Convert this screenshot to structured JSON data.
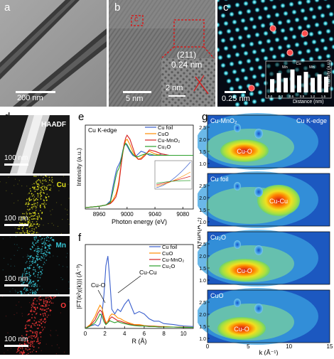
{
  "panels": {
    "a": {
      "label": "a",
      "scale": "200 nm"
    },
    "b": {
      "label": "b",
      "scale": "5 nm",
      "box_label": "c",
      "inset_index": "(211)",
      "inset_spacing": "0.24 nm",
      "inset_scale": "2 nm"
    },
    "c": {
      "label": "c",
      "scale": "0.25 nm",
      "inset_ylabel": "Intensity (a.u.)",
      "inset_xlabel": "Distance (nm)",
      "inset_ticks": [
        "0.0",
        "0.3",
        "0.6",
        "0.9",
        "1.2",
        "1.5"
      ],
      "peak_labels": [
        "Mn",
        "Cu",
        "Mn"
      ]
    },
    "d": {
      "label": "d",
      "maps": [
        {
          "name": "HAADF",
          "scale": "100 nm",
          "color": "#ffffff"
        },
        {
          "name": "Cu",
          "scale": "100 nm",
          "color": "#e6e61e"
        },
        {
          "name": "Mn",
          "scale": "100 nm",
          "color": "#38c8d8"
        },
        {
          "name": "O",
          "scale": "100 nm",
          "color": "#ff3a3a"
        }
      ]
    },
    "e": {
      "label": "e",
      "edge": "Cu K-edge",
      "ylabel": "Intensity (a.u.)",
      "xlabel": "Photon energy (eV)",
      "xticks": [
        "8960",
        "9000",
        "9040",
        "9080"
      ]
    },
    "f": {
      "label": "f",
      "ylabel": "|FT(k²χ(k))| (Å⁻³)",
      "xlabel": "R (Å)",
      "xticks": [
        "0",
        "2",
        "4",
        "6",
        "8",
        "10"
      ],
      "annot_cuo": "Cu-O",
      "annot_cucu": "Cu-Cu"
    },
    "g": {
      "label": "g",
      "edge": "Cu K-edge",
      "ylabel": "R+ΔR(Å⁻¹)",
      "xlabel": "k (Å⁻¹)",
      "xticks": [
        "0",
        "5",
        "10",
        "15"
      ],
      "yticks": [
        "1.0",
        "1.5",
        "2.0",
        "2.5"
      ],
      "maps": [
        {
          "name": "Cu-MnO₂",
          "feature": "Cu-O"
        },
        {
          "name": "Cu foil",
          "feature": "Cu-Cu"
        },
        {
          "name": "Cu₂O",
          "feature": "Cu-O"
        },
        {
          "name": "CuO",
          "feature": "Cu-O"
        }
      ]
    }
  },
  "legend": [
    {
      "name": "Cu foil",
      "color": "#3a5fcd"
    },
    {
      "name": "CuO",
      "color": "#ff8c00"
    },
    {
      "name": "Cu-MnO₂",
      "color": "#d62020"
    },
    {
      "name": "Cu₂O",
      "color": "#2ca02c"
    }
  ],
  "chart_data": [
    {
      "type": "line",
      "title": "Cu K-edge",
      "xlabel": "Photon energy (eV)",
      "ylabel": "Intensity (a.u.)",
      "xlim": [
        8940,
        9095
      ],
      "x": [
        8940,
        8960,
        8970,
        8976,
        8980,
        8984,
        8986,
        8988,
        8990,
        8992,
        8994,
        8996,
        8998,
        9000,
        9004,
        9008,
        9012,
        9016,
        9020,
        9026,
        9032,
        9040,
        9050,
        9060,
        9070,
        9080,
        9095
      ],
      "series": [
        {
          "name": "Cu foil",
          "values": [
            0.02,
            0.04,
            0.06,
            0.12,
            0.35,
            0.55,
            0.62,
            0.66,
            0.7,
            0.78,
            0.88,
            0.95,
            0.97,
            0.94,
            0.86,
            0.8,
            0.78,
            0.82,
            0.86,
            0.84,
            0.8,
            0.8,
            0.82,
            0.8,
            0.8,
            0.8,
            0.8
          ]
        },
        {
          "name": "CuO",
          "values": [
            0.02,
            0.04,
            0.06,
            0.09,
            0.14,
            0.22,
            0.3,
            0.4,
            0.55,
            0.7,
            0.84,
            0.95,
            1.02,
            1.04,
            0.96,
            0.86,
            0.78,
            0.74,
            0.76,
            0.82,
            0.86,
            0.82,
            0.8,
            0.8,
            0.8,
            0.8,
            0.8
          ]
        },
        {
          "name": "Cu-MnO₂",
          "values": [
            0.02,
            0.04,
            0.06,
            0.08,
            0.12,
            0.18,
            0.26,
            0.36,
            0.52,
            0.7,
            0.86,
            0.98,
            1.06,
            1.1,
            1.04,
            0.92,
            0.8,
            0.74,
            0.74,
            0.8,
            0.88,
            0.86,
            0.82,
            0.8,
            0.8,
            0.8,
            0.8
          ]
        },
        {
          "name": "Cu₂O",
          "values": [
            0.02,
            0.04,
            0.06,
            0.1,
            0.28,
            0.48,
            0.56,
            0.6,
            0.66,
            0.76,
            0.86,
            0.94,
            0.98,
            0.96,
            0.88,
            0.82,
            0.78,
            0.78,
            0.8,
            0.82,
            0.82,
            0.8,
            0.8,
            0.8,
            0.8,
            0.8,
            0.8
          ]
        }
      ]
    },
    {
      "type": "line",
      "xlabel": "R (Å)",
      "ylabel": "|FT(k²χ(k))| (Å⁻³)",
      "xlim": [
        0,
        11
      ],
      "x": [
        0,
        0.5,
        1.0,
        1.3,
        1.5,
        1.7,
        1.9,
        2.1,
        2.3,
        2.5,
        2.7,
        3.0,
        3.3,
        3.6,
        4.0,
        4.4,
        4.7,
        5.0,
        5.5,
        6.0,
        6.5,
        7.0,
        7.5,
        8.0,
        9.0,
        10.0,
        11.0
      ],
      "series": [
        {
          "name": "Cu foil",
          "values": [
            0,
            0.05,
            0.08,
            0.05,
            0.1,
            0.3,
            0.7,
            1.3,
            1.5,
            1.0,
            0.4,
            0.3,
            0.4,
            0.35,
            0.5,
            0.6,
            0.45,
            0.3,
            0.35,
            0.3,
            0.2,
            0.15,
            0.15,
            0.1,
            0.08,
            0.05,
            0.04
          ]
        },
        {
          "name": "CuO",
          "values": [
            0,
            0.08,
            0.25,
            0.4,
            0.48,
            0.42,
            0.25,
            0.12,
            0.15,
            0.25,
            0.3,
            0.28,
            0.22,
            0.2,
            0.15,
            0.12,
            0.1,
            0.08,
            0.08,
            0.06,
            0.05,
            0.05,
            0.04,
            0.04,
            0.03,
            0.03,
            0.02
          ]
        },
        {
          "name": "Cu-MnO₂",
          "values": [
            0,
            0.06,
            0.18,
            0.32,
            0.38,
            0.34,
            0.2,
            0.1,
            0.12,
            0.2,
            0.24,
            0.2,
            0.16,
            0.15,
            0.12,
            0.1,
            0.08,
            0.07,
            0.06,
            0.05,
            0.05,
            0.04,
            0.04,
            0.03,
            0.03,
            0.02,
            0.02
          ]
        },
        {
          "name": "Cu₂O",
          "values": [
            0,
            0.05,
            0.12,
            0.22,
            0.3,
            0.26,
            0.14,
            0.08,
            0.12,
            0.16,
            0.14,
            0.12,
            0.14,
            0.12,
            0.1,
            0.08,
            0.07,
            0.06,
            0.05,
            0.05,
            0.04,
            0.04,
            0.03,
            0.03,
            0.03,
            0.02,
            0.02
          ]
        }
      ]
    }
  ]
}
